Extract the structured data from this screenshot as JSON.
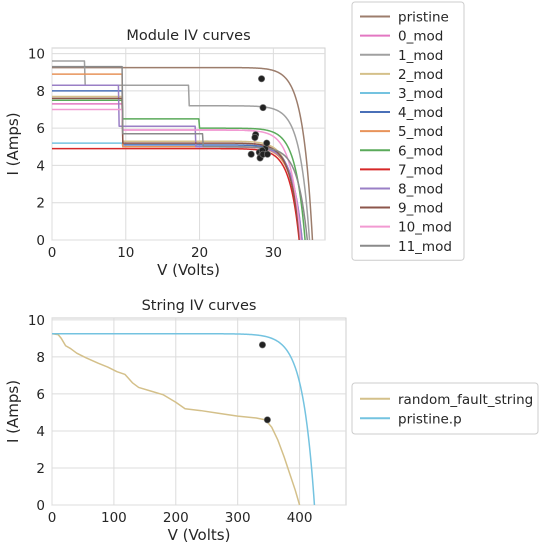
{
  "chart_data": [
    {
      "type": "line",
      "title": "Module IV curves",
      "xlabel": "V (Volts)",
      "ylabel": "I (Amps)",
      "xlim": [
        0,
        37
      ],
      "ylim": [
        0,
        10.3
      ],
      "xticks": [
        "0",
        "10",
        "20",
        "30"
      ],
      "xtick_values": [
        0,
        10,
        20,
        30
      ],
      "yticks": [
        "0",
        "2",
        "4",
        "6",
        "8",
        "10"
      ],
      "ytick_values": [
        0,
        2,
        4,
        6,
        8,
        10
      ],
      "grid": true,
      "legend": "outside-right",
      "series": [
        {
          "name": "pristine",
          "color": "#9c7d6c",
          "voc": 35.3,
          "steps": [
            [
              0,
              9.25
            ]
          ],
          "mpp": [
            28.4,
            8.65
          ]
        },
        {
          "name": "0_mod",
          "color": "#e377c2",
          "voc": 33.8,
          "steps": [
            [
              0,
              7.3
            ],
            [
              9.5,
              5.9
            ],
            [
              27.5,
              5.1
            ]
          ],
          "mpp": [
            27.6,
            5.65
          ]
        },
        {
          "name": "1_mod",
          "color": "#a0a0a0",
          "voc": 34.9,
          "steps": [
            [
              0,
              9.6
            ],
            [
              4.5,
              8.3
            ],
            [
              18.5,
              7.2
            ]
          ],
          "mpp": [
            28.6,
            7.1
          ]
        },
        {
          "name": "2_mod",
          "color": "#d4c08a",
          "voc": 33.6,
          "steps": [
            [
              0,
              7.7
            ],
            [
              9.5,
              5.3
            ]
          ],
          "mpp": [
            27.0,
            4.6
          ]
        },
        {
          "name": "3_mod",
          "color": "#74c3e0",
          "voc": 33.9,
          "steps": [
            [
              0,
              5.2
            ],
            [
              9.5,
              5.0
            ]
          ],
          "mpp": [
            28.9,
            4.9
          ]
        },
        {
          "name": "4_mod",
          "color": "#4a70b8",
          "voc": 33.8,
          "steps": [
            [
              0,
              8.0
            ],
            [
              9.5,
              5.1
            ]
          ],
          "mpp": [
            28.1,
            4.7
          ]
        },
        {
          "name": "5_mod",
          "color": "#e8935a",
          "voc": 33.7,
          "steps": [
            [
              0,
              8.9
            ],
            [
              9.5,
              5.0
            ]
          ],
          "mpp": [
            28.3,
            4.5
          ]
        },
        {
          "name": "6_mod",
          "color": "#5aaa5a",
          "voc": 34.3,
          "steps": [
            [
              0,
              7.5
            ],
            [
              9.5,
              6.5
            ],
            [
              20.0,
              6.0
            ]
          ],
          "mpp": [
            29.1,
            5.2
          ]
        },
        {
          "name": "7_mod",
          "color": "#d62728",
          "voc": 33.5,
          "steps": [
            [
              0,
              4.9
            ]
          ],
          "mpp": [
            28.2,
            4.4
          ]
        },
        {
          "name": "8_mod",
          "color": "#9a7fc6",
          "voc": 33.9,
          "steps": [
            [
              0,
              8.3
            ],
            [
              9.0,
              6.1
            ],
            [
              19.5,
              5.0
            ]
          ],
          "mpp": [
            28.5,
            4.8
          ]
        },
        {
          "name": "9_mod",
          "color": "#8c564b",
          "voc": 33.6,
          "steps": [
            [
              0,
              7.6
            ],
            [
              9.5,
              5.2
            ]
          ],
          "mpp": [
            28.6,
            4.6
          ]
        },
        {
          "name": "10_mod",
          "color": "#f29ad2",
          "voc": 33.7,
          "steps": [
            [
              0,
              7.0
            ],
            [
              9.5,
              5.9
            ]
          ],
          "mpp": [
            27.5,
            5.5
          ]
        },
        {
          "name": "11_mod",
          "color": "#8a8a8a",
          "voc": 34.6,
          "steps": [
            [
              0,
              9.3
            ],
            [
              9.5,
              5.7
            ],
            [
              20.5,
              5.0
            ]
          ],
          "mpp": [
            29.2,
            4.6
          ]
        }
      ]
    },
    {
      "type": "line",
      "title": "String IV curves",
      "xlabel": "V (Volts)",
      "ylabel": "I (Amps)",
      "xlim": [
        0,
        475
      ],
      "ylim": [
        0,
        10.1
      ],
      "xticks": [
        "0",
        "100",
        "200",
        "300",
        "400"
      ],
      "xtick_values": [
        0,
        100,
        200,
        300,
        400
      ],
      "yticks": [
        "0",
        "2",
        "4",
        "6",
        "8",
        "10"
      ],
      "ytick_values": [
        0,
        2,
        4,
        6,
        8,
        10
      ],
      "grid": true,
      "legend": "outside-right",
      "series": [
        {
          "name": "random_fault_string",
          "color": "#d4c08a",
          "points": [
            [
              0,
              9.25
            ],
            [
              10,
              9.2
            ],
            [
              15,
              9.0
            ],
            [
              22,
              8.6
            ],
            [
              30,
              8.45
            ],
            [
              40,
              8.2
            ],
            [
              55,
              7.95
            ],
            [
              65,
              7.8
            ],
            [
              75,
              7.65
            ],
            [
              90,
              7.45
            ],
            [
              105,
              7.2
            ],
            [
              118,
              7.05
            ],
            [
              130,
              6.6
            ],
            [
              140,
              6.35
            ],
            [
              160,
              6.15
            ],
            [
              180,
              5.95
            ],
            [
              200,
              5.55
            ],
            [
              215,
              5.2
            ],
            [
              240,
              5.1
            ],
            [
              270,
              4.95
            ],
            [
              300,
              4.8
            ],
            [
              330,
              4.7
            ],
            [
              345,
              4.6
            ],
            [
              355,
              4.2
            ],
            [
              365,
              3.5
            ],
            [
              375,
              2.6
            ],
            [
              385,
              1.6
            ],
            [
              393,
              0.8
            ],
            [
              400,
              0
            ]
          ],
          "mpp": [
            348,
            4.6
          ]
        },
        {
          "name": "pristine.p",
          "color": "#74c3e0",
          "voc": 424,
          "isc": 9.25,
          "mpp": [
            340,
            8.65
          ]
        }
      ]
    }
  ]
}
